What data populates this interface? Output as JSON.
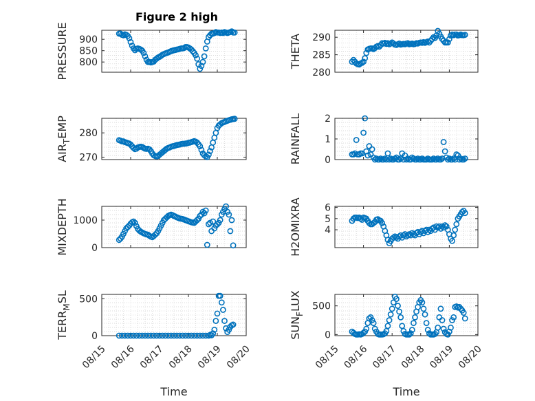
{
  "figure": {
    "title": "Figure 2 high",
    "shared_xlabel": "Time",
    "x_tick_labels": [
      "08/15",
      "08/16",
      "08/17",
      "08/18",
      "08/19",
      "08/20"
    ]
  },
  "colors": {
    "marker": "#0072BD",
    "axis": "#262626",
    "grid": "#d0d0d0",
    "background": "#ffffff"
  },
  "chart_data": [
    {
      "type": "scatter",
      "title": "Figure 2 high",
      "ylabel": "PRESSURE",
      "xlim": [
        "2023-08-15",
        "2023-08-20"
      ],
      "xlim_days": [
        0,
        5
      ],
      "ylim": [
        755,
        940
      ],
      "yticks": [
        800,
        850,
        900
      ],
      "grid": true,
      "x": [
        0.6,
        0.65,
        0.7,
        0.75,
        0.8,
        0.85,
        0.9,
        0.95,
        1.0,
        1.05,
        1.1,
        1.15,
        1.2,
        1.25,
        1.3,
        1.35,
        1.4,
        1.45,
        1.5,
        1.55,
        1.6,
        1.65,
        1.7,
        1.75,
        1.8,
        1.85,
        1.9,
        1.95,
        2.0,
        2.05,
        2.1,
        2.15,
        2.2,
        2.25,
        2.3,
        2.35,
        2.4,
        2.45,
        2.5,
        2.55,
        2.6,
        2.65,
        2.7,
        2.75,
        2.8,
        2.85,
        2.9,
        2.95,
        3.0,
        3.05,
        3.1,
        3.15,
        3.2,
        3.25,
        3.3,
        3.35,
        3.4,
        3.45,
        3.5,
        3.55,
        3.6,
        3.65,
        3.7,
        3.75,
        3.8,
        3.85,
        3.9,
        3.95,
        4.0,
        4.05,
        4.1,
        4.15,
        4.2,
        4.25,
        4.3,
        4.35,
        4.4,
        4.45,
        4.5,
        4.55,
        4.6
      ],
      "y": [
        925,
        925,
        920,
        918,
        922,
        920,
        915,
        905,
        888,
        872,
        860,
        852,
        858,
        860,
        858,
        855,
        850,
        840,
        825,
        810,
        800,
        800,
        798,
        800,
        802,
        810,
        815,
        820,
        823,
        827,
        832,
        835,
        838,
        840,
        842,
        845,
        848,
        850,
        852,
        853,
        855,
        856,
        858,
        860,
        860,
        862,
        866,
        866,
        864,
        860,
        855,
        848,
        840,
        830,
        815,
        790,
        770,
        783,
        800,
        825,
        860,
        890,
        910,
        918,
        925,
        925,
        928,
        932,
        930,
        930,
        928,
        930,
        928,
        932,
        930,
        928,
        930,
        932,
        935,
        930,
        930
      ],
      "note_x": "x values in days after 08/15 00:00"
    },
    {
      "type": "scatter",
      "ylabel": "THETA",
      "xlim_days": [
        0,
        5
      ],
      "ylim": [
        280,
        292
      ],
      "yticks": [
        280,
        285,
        290
      ],
      "grid": true,
      "x": [
        0.6,
        0.65,
        0.7,
        0.75,
        0.8,
        0.85,
        0.9,
        0.95,
        1.0,
        1.05,
        1.1,
        1.15,
        1.2,
        1.25,
        1.3,
        1.35,
        1.4,
        1.45,
        1.5,
        1.55,
        1.6,
        1.65,
        1.7,
        1.75,
        1.8,
        1.85,
        1.9,
        1.95,
        2.0,
        2.05,
        2.1,
        2.15,
        2.2,
        2.25,
        2.3,
        2.35,
        2.4,
        2.45,
        2.5,
        2.55,
        2.6,
        2.65,
        2.7,
        2.75,
        2.8,
        2.85,
        2.9,
        2.95,
        3.0,
        3.05,
        3.1,
        3.15,
        3.2,
        3.25,
        3.3,
        3.35,
        3.4,
        3.45,
        3.5,
        3.55,
        3.6,
        3.65,
        3.7,
        3.75,
        3.8,
        3.85,
        3.9,
        3.95,
        4.0,
        4.05,
        4.1,
        4.15,
        4.2,
        4.25,
        4.3,
        4.35,
        4.4,
        4.45,
        4.5,
        4.55
      ],
      "y": [
        283,
        283.5,
        283,
        282.5,
        282.3,
        282.2,
        282.5,
        282.7,
        283,
        284,
        285.5,
        286.5,
        286.7,
        286.8,
        286.8,
        286.6,
        286.9,
        287.3,
        287.5,
        287.3,
        287.8,
        288.3,
        288.2,
        288.4,
        288.1,
        288.3,
        288,
        288.2,
        288.5,
        288.2,
        287.9,
        287.8,
        288,
        288.2,
        287.9,
        288,
        288.1,
        288,
        288.2,
        288.3,
        288,
        288.1,
        288.2,
        288,
        288.1,
        288.3,
        288.2,
        288.4,
        288.5,
        288.4,
        288.6,
        288.4,
        288.6,
        288.8,
        288.5,
        289,
        289.5,
        290,
        289.8,
        290.5,
        291.8,
        291,
        290.2,
        289.5,
        289,
        288.5,
        288.5,
        288.5,
        289.5,
        290.5,
        290.8,
        290.6,
        290.8,
        290.8,
        290.5,
        290.6,
        290.8,
        290.6,
        290.6,
        290.7
      ]
    },
    {
      "type": "scatter",
      "ylabel_main": "AIR",
      "ylabel_sub": "T",
      "ylabel_tail": "EMP",
      "xlim_days": [
        0,
        5
      ],
      "ylim": [
        269,
        286
      ],
      "yticks": [
        270,
        280
      ],
      "grid": true,
      "x": [
        0.6,
        0.65,
        0.7,
        0.75,
        0.8,
        0.85,
        0.9,
        0.95,
        1.0,
        1.05,
        1.1,
        1.15,
        1.2,
        1.25,
        1.3,
        1.35,
        1.4,
        1.45,
        1.5,
        1.55,
        1.6,
        1.65,
        1.7,
        1.75,
        1.8,
        1.85,
        1.9,
        1.95,
        2.0,
        2.05,
        2.1,
        2.15,
        2.2,
        2.25,
        2.3,
        2.35,
        2.4,
        2.45,
        2.5,
        2.55,
        2.6,
        2.65,
        2.7,
        2.75,
        2.8,
        2.85,
        2.9,
        2.95,
        3.0,
        3.05,
        3.1,
        3.15,
        3.2,
        3.25,
        3.3,
        3.35,
        3.4,
        3.45,
        3.5,
        3.55,
        3.6,
        3.65,
        3.7,
        3.75,
        3.8,
        3.85,
        3.9,
        3.95,
        4.0,
        4.05,
        4.1,
        4.15,
        4.2,
        4.25,
        4.3,
        4.35,
        4.4,
        4.45,
        4.5,
        4.55,
        4.6
      ],
      "y": [
        277,
        276.8,
        276.5,
        276.5,
        276.2,
        276,
        275.8,
        275.6,
        275.2,
        274.5,
        273.8,
        273.3,
        273.5,
        274,
        274.2,
        274.3,
        274.2,
        273.8,
        273.5,
        273.4,
        273.5,
        273.2,
        272.5,
        271.5,
        270.8,
        270.5,
        270.3,
        270.5,
        271,
        271.5,
        272,
        272.5,
        273,
        273.5,
        273.8,
        274,
        274.3,
        274.5,
        274.6,
        274.8,
        275,
        275.1,
        275.2,
        275.4,
        275.5,
        275.5,
        275.6,
        275.7,
        275.9,
        276,
        276.2,
        276.4,
        276.6,
        276.4,
        276,
        275.3,
        274.5,
        273,
        271.5,
        270.8,
        270.3,
        270,
        271,
        272.5,
        274,
        276,
        278,
        280,
        282,
        283,
        283.5,
        284,
        284.3,
        284.5,
        284.8,
        285,
        285.2,
        285.4,
        285.6,
        285.7,
        285.8
      ]
    },
    {
      "type": "scatter",
      "ylabel": "RAINFALL",
      "xlim_days": [
        0,
        5
      ],
      "ylim": [
        0,
        2
      ],
      "yticks": [
        0,
        1,
        2
      ],
      "grid": true,
      "x": [
        0.6,
        0.65,
        0.7,
        0.75,
        0.8,
        0.85,
        0.9,
        0.95,
        1.0,
        1.05,
        1.1,
        1.15,
        1.2,
        1.25,
        1.3,
        1.35,
        1.4,
        1.45,
        1.5,
        1.55,
        1.6,
        1.65,
        1.7,
        1.75,
        1.8,
        1.85,
        1.9,
        1.95,
        2.0,
        2.05,
        2.1,
        2.15,
        2.2,
        2.25,
        2.3,
        2.35,
        2.4,
        2.45,
        2.5,
        2.55,
        2.6,
        2.65,
        2.7,
        2.75,
        2.8,
        2.85,
        2.9,
        2.95,
        3.0,
        3.05,
        3.1,
        3.15,
        3.2,
        3.25,
        3.3,
        3.35,
        3.4,
        3.45,
        3.5,
        3.55,
        3.6,
        3.65,
        3.7,
        3.75,
        3.8,
        3.85,
        3.9,
        3.95,
        4.0,
        4.05,
        4.1,
        4.15,
        4.2,
        4.25,
        4.3,
        4.35,
        4.4,
        4.45,
        4.5,
        4.55
      ],
      "y": [
        0.25,
        0.25,
        0.3,
        0.95,
        0.25,
        0.25,
        0.3,
        0.3,
        1.3,
        2.0,
        0.4,
        0.2,
        0.65,
        0.25,
        0.5,
        0.1,
        0.0,
        0.05,
        0.0,
        0.0,
        0.05,
        0.0,
        0.0,
        0.05,
        0.0,
        0.3,
        0.0,
        0.05,
        0.0,
        0.0,
        0.05,
        0.1,
        0.0,
        0.0,
        0.05,
        0.3,
        0.0,
        0.2,
        0.0,
        0.05,
        0.0,
        0.0,
        0.1,
        0.05,
        0.0,
        0.0,
        0.05,
        0.0,
        0.0,
        0.05,
        0.0,
        0.0,
        0.0,
        0.05,
        0.0,
        0.0,
        0.0,
        0.05,
        0.0,
        0.0,
        0.05,
        0.0,
        0.0,
        0.05,
        0.85,
        0.4,
        0.1,
        0.0,
        0.05,
        0.0,
        0.0,
        0.05,
        0.0,
        0.25,
        0.2,
        0.0,
        0.05,
        0.0,
        0.0,
        0.05
      ]
    },
    {
      "type": "scatter",
      "ylabel": "MIXDEPTH",
      "xlim_days": [
        0,
        5
      ],
      "ylim": [
        0,
        1500
      ],
      "yticks": [
        0,
        1000
      ],
      "grid": true,
      "x": [
        0.6,
        0.65,
        0.7,
        0.75,
        0.8,
        0.85,
        0.9,
        0.95,
        1.0,
        1.05,
        1.1,
        1.15,
        1.2,
        1.25,
        1.3,
        1.35,
        1.4,
        1.45,
        1.5,
        1.55,
        1.6,
        1.65,
        1.7,
        1.75,
        1.8,
        1.85,
        1.9,
        1.95,
        2.0,
        2.05,
        2.1,
        2.15,
        2.2,
        2.25,
        2.3,
        2.35,
        2.4,
        2.45,
        2.5,
        2.55,
        2.6,
        2.65,
        2.7,
        2.75,
        2.8,
        2.85,
        2.9,
        2.95,
        3.0,
        3.05,
        3.1,
        3.15,
        3.2,
        3.25,
        3.3,
        3.35,
        3.4,
        3.45,
        3.5,
        3.55,
        3.6,
        3.65,
        3.7,
        3.75,
        3.8,
        3.85,
        3.9,
        3.95,
        4.0,
        4.05,
        4.1,
        4.15,
        4.2,
        4.25,
        4.3,
        4.35,
        4.4,
        4.45,
        4.5,
        4.55
      ],
      "y": [
        280,
        330,
        400,
        500,
        600,
        700,
        750,
        800,
        870,
        920,
        950,
        900,
        780,
        680,
        620,
        580,
        550,
        520,
        500,
        480,
        470,
        430,
        400,
        380,
        420,
        470,
        520,
        600,
        700,
        800,
        900,
        1000,
        1050,
        1100,
        1150,
        1180,
        1200,
        1180,
        1150,
        1130,
        1100,
        1080,
        1060,
        1050,
        1040,
        1020,
        1000,
        980,
        960,
        940,
        920,
        910,
        900,
        950,
        1000,
        1050,
        1150,
        1200,
        1300,
        1250,
        1350,
        100,
        850,
        900,
        600,
        950,
        700,
        800,
        850,
        900,
        1000,
        1200,
        1300,
        1400,
        1500,
        1300,
        1200,
        600,
        1000,
        80
      ]
    },
    {
      "type": "scatter",
      "ylabel": "H2OMIXRA",
      "xlim_days": [
        0,
        5
      ],
      "ylim": [
        2.4,
        6.1
      ],
      "yticks": [
        4,
        5,
        6
      ],
      "grid": true,
      "x": [
        0.6,
        0.65,
        0.7,
        0.75,
        0.8,
        0.85,
        0.9,
        0.95,
        1.0,
        1.05,
        1.1,
        1.15,
        1.2,
        1.25,
        1.3,
        1.35,
        1.4,
        1.45,
        1.5,
        1.55,
        1.6,
        1.65,
        1.7,
        1.75,
        1.8,
        1.85,
        1.9,
        1.95,
        2.0,
        2.05,
        2.1,
        2.15,
        2.2,
        2.25,
        2.3,
        2.35,
        2.4,
        2.45,
        2.5,
        2.55,
        2.6,
        2.65,
        2.7,
        2.75,
        2.8,
        2.85,
        2.9,
        2.95,
        3.0,
        3.05,
        3.1,
        3.15,
        3.2,
        3.25,
        3.3,
        3.35,
        3.4,
        3.45,
        3.5,
        3.55,
        3.6,
        3.65,
        3.7,
        3.75,
        3.8,
        3.85,
        3.9,
        3.95,
        4.0,
        4.05,
        4.1,
        4.15,
        4.2,
        4.25,
        4.3,
        4.35,
        4.4,
        4.45,
        4.5,
        4.55
      ],
      "y": [
        4.8,
        5.0,
        5.1,
        5.1,
        5.05,
        5.1,
        5.0,
        4.9,
        5.1,
        5.05,
        5.0,
        4.8,
        4.6,
        4.5,
        4.5,
        4.6,
        4.7,
        4.9,
        4.95,
        4.85,
        4.8,
        4.6,
        4.3,
        3.9,
        3.5,
        3.1,
        2.8,
        3.0,
        3.2,
        3.3,
        3.4,
        3.3,
        3.2,
        3.4,
        3.5,
        3.3,
        3.5,
        3.6,
        3.4,
        3.5,
        3.6,
        3.5,
        3.7,
        3.6,
        3.5,
        3.7,
        3.8,
        3.6,
        3.8,
        3.9,
        3.7,
        3.9,
        4.0,
        3.8,
        4.0,
        3.9,
        4.1,
        4.2,
        4.0,
        4.3,
        4.2,
        4.3,
        4.1,
        4.3,
        4.2,
        4.4,
        4.3,
        4.0,
        3.6,
        3.2,
        3.0,
        3.5,
        4.0,
        4.5,
        5.0,
        5.2,
        5.4,
        5.6,
        5.7,
        5.5
      ]
    },
    {
      "type": "scatter",
      "ylabel_main": "TERR",
      "ylabel_sub": "M",
      "ylabel_tail": "SL",
      "xlim_days": [
        0,
        5
      ],
      "ylim": [
        0,
        560
      ],
      "yticks": [
        0,
        500
      ],
      "grid": true,
      "x": [
        0.6,
        0.7,
        0.8,
        0.9,
        1.0,
        1.1,
        1.2,
        1.3,
        1.4,
        1.5,
        1.6,
        1.7,
        1.8,
        1.9,
        2.0,
        2.1,
        2.2,
        2.3,
        2.4,
        2.5,
        2.6,
        2.7,
        2.8,
        2.9,
        3.0,
        3.1,
        3.2,
        3.3,
        3.4,
        3.5,
        3.6,
        3.7,
        3.75,
        3.8,
        3.85,
        3.9,
        3.95,
        4.0,
        4.05,
        4.1,
        4.15,
        4.2,
        4.25,
        4.3,
        4.35,
        4.4,
        4.45,
        4.5,
        4.55
      ],
      "y": [
        0,
        0,
        0,
        0,
        0,
        0,
        0,
        0,
        0,
        0,
        0,
        0,
        0,
        0,
        0,
        0,
        0,
        0,
        0,
        0,
        0,
        0,
        0,
        0,
        0,
        0,
        0,
        0,
        0,
        0,
        0,
        0,
        10,
        5,
        30,
        80,
        200,
        300,
        540,
        540,
        450,
        350,
        200,
        100,
        50,
        80,
        120,
        140,
        150
      ]
    },
    {
      "type": "scatter",
      "ylabel_main": "SUN",
      "ylabel_sub": "F",
      "ylabel_tail": "LUX",
      "xlim_days": [
        0,
        5
      ],
      "ylim": [
        -20,
        700
      ],
      "yticks": [
        0,
        500
      ],
      "grid": true,
      "x": [
        0.6,
        0.65,
        0.7,
        0.75,
        0.8,
        0.85,
        0.9,
        0.95,
        1.0,
        1.05,
        1.1,
        1.15,
        1.2,
        1.25,
        1.3,
        1.35,
        1.4,
        1.45,
        1.5,
        1.55,
        1.6,
        1.65,
        1.7,
        1.75,
        1.8,
        1.85,
        1.9,
        1.95,
        2.0,
        2.05,
        2.1,
        2.15,
        2.2,
        2.25,
        2.3,
        2.35,
        2.4,
        2.45,
        2.5,
        2.55,
        2.6,
        2.65,
        2.7,
        2.75,
        2.8,
        2.85,
        2.9,
        2.95,
        3.0,
        3.05,
        3.1,
        3.15,
        3.2,
        3.25,
        3.3,
        3.35,
        3.4,
        3.45,
        3.5,
        3.55,
        3.6,
        3.65,
        3.7,
        3.75,
        3.8,
        3.85,
        3.9,
        3.95,
        4.0,
        4.05,
        4.1,
        4.15,
        4.2,
        4.25,
        4.3,
        4.35,
        4.4,
        4.45,
        4.5,
        4.55
      ],
      "y": [
        50,
        30,
        10,
        0,
        0,
        5,
        0,
        10,
        30,
        50,
        100,
        200,
        280,
        300,
        250,
        200,
        100,
        50,
        10,
        0,
        0,
        0,
        5,
        20,
        60,
        150,
        250,
        350,
        450,
        560,
        660,
        620,
        500,
        400,
        300,
        150,
        60,
        10,
        0,
        0,
        0,
        20,
        80,
        200,
        300,
        400,
        480,
        560,
        600,
        560,
        450,
        350,
        200,
        80,
        20,
        0,
        0,
        0,
        10,
        40,
        120,
        300,
        450,
        250,
        100,
        40,
        10,
        0,
        50,
        120,
        250,
        300,
        480,
        490,
        470,
        480,
        450,
        420,
        380,
        280
      ]
    }
  ]
}
